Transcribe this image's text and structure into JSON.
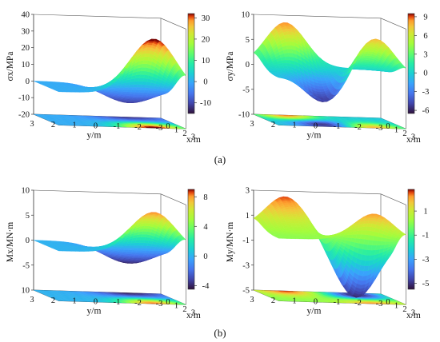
{
  "figure": {
    "labels": [
      "(a)",
      "(b)"
    ]
  },
  "chart_data": [
    {
      "type": "surface",
      "zlabel": "σx/MPa",
      "xlabel": "x/m",
      "ylabel": "y/m",
      "z_ticks": [
        "40",
        "30",
        "20",
        "10",
        "0",
        "-10",
        "-20"
      ],
      "x_ticks": [
        "0",
        "1",
        "2",
        "3"
      ],
      "y_ticks": [
        "3",
        "2",
        "1",
        "0",
        "-1",
        "-2",
        "-3"
      ],
      "colorbar": {
        "min": -15,
        "max": 32,
        "ticks": [
          "30",
          "20",
          "10",
          "0",
          "-10"
        ]
      },
      "surface": "single peak ≈34 MPa near x=3, y=-1.5; trough ≈-12 MPa near x=0, y=-1.5; contour projection at z=-20"
    },
    {
      "type": "surface",
      "zlabel": "σy/MPa",
      "xlabel": "x/m",
      "ylabel": "y/m",
      "z_ticks": [
        "10",
        "5",
        "0",
        "-5",
        "-10"
      ],
      "x_ticks": [
        "0",
        "1",
        "2",
        "3"
      ],
      "y_ticks": [
        "3",
        "2",
        "1",
        "0",
        "-1",
        "-2",
        "-3"
      ],
      "colorbar": {
        "min": -6.5,
        "max": 9.5,
        "ticks": [
          "9",
          "6",
          "3",
          "0",
          "-3",
          "-6"
        ]
      },
      "surface": "two peaks ≈9 MPa near (x=0, y=1.5) and (x=3, y=-1.5); trough ≈-6 MPa; contour projection at z=-10"
    },
    {
      "type": "surface",
      "zlabel": "Mx/MN·m",
      "xlabel": "x/m",
      "ylabel": "y/m",
      "z_ticks": [
        "10",
        "5",
        "0",
        "-5",
        "10"
      ],
      "x_ticks": [
        "0",
        "1",
        "2",
        "3"
      ],
      "y_ticks": [
        "3",
        "2",
        "1",
        "0",
        "-1",
        "-2",
        "-3"
      ],
      "colorbar": {
        "min": -4.5,
        "max": 9,
        "ticks": [
          "8",
          "4",
          "0",
          "-4"
        ]
      },
      "surface": "single peak ≈8.5 MN·m near x=3, y=-1.5; trough ≈-4 MN·m; contour projection at z=-10"
    },
    {
      "type": "surface",
      "zlabel": "My/MN·m",
      "xlabel": "x/m",
      "ylabel": "y/m",
      "z_ticks": [
        "3",
        "1",
        "-1",
        "-3",
        "-5"
      ],
      "x_ticks": [
        "0",
        "1",
        "2",
        "3"
      ],
      "y_ticks": [
        "3",
        "2",
        "1",
        "0",
        "-1",
        "-2",
        "-3"
      ],
      "colorbar": {
        "min": -5.5,
        "max": 2.8,
        "ticks": [
          "1",
          "-1",
          "-3",
          "-5"
        ]
      },
      "surface": "two peaks ≈2.5 MN·m near (x=0, y=1.5) and (x=3, y=-1.5); trough ≈-5 MN·m; contour projection at z=-5"
    }
  ]
}
